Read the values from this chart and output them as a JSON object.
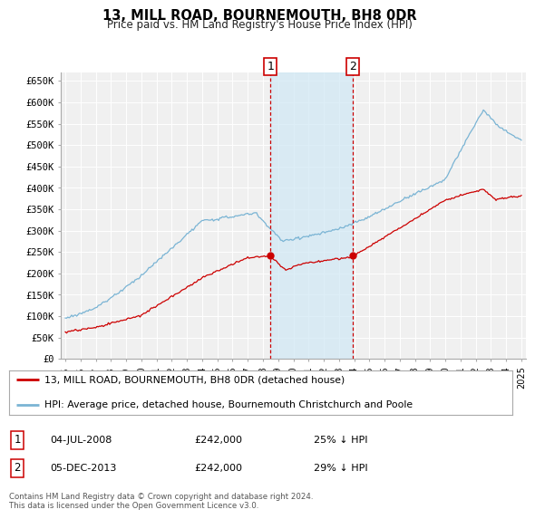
{
  "title": "13, MILL ROAD, BOURNEMOUTH, BH8 0DR",
  "subtitle": "Price paid vs. HM Land Registry's House Price Index (HPI)",
  "ylabel_ticks": [
    "£0",
    "£50K",
    "£100K",
    "£150K",
    "£200K",
    "£250K",
    "£300K",
    "£350K",
    "£400K",
    "£450K",
    "£500K",
    "£550K",
    "£600K",
    "£650K"
  ],
  "ytick_values": [
    0,
    50000,
    100000,
    150000,
    200000,
    250000,
    300000,
    350000,
    400000,
    450000,
    500000,
    550000,
    600000,
    650000
  ],
  "ylim": [
    0,
    670000
  ],
  "hpi_color": "#7ab4d4",
  "price_color": "#cc0000",
  "transaction1": {
    "date": "04-JUL-2008",
    "price": 242000,
    "label": "1",
    "pct": "25% ↓ HPI"
  },
  "transaction2": {
    "date": "05-DEC-2013",
    "price": 242000,
    "label": "2",
    "pct": "29% ↓ HPI"
  },
  "legend_property": "13, MILL ROAD, BOURNEMOUTH, BH8 0DR (detached house)",
  "legend_hpi": "HPI: Average price, detached house, Bournemouth Christchurch and Poole",
  "footer": "Contains HM Land Registry data © Crown copyright and database right 2024.\nThis data is licensed under the Open Government Licence v3.0.",
  "background_color": "#ffffff",
  "plot_bg_color": "#f0f0f0",
  "grid_color": "#ffffff",
  "shade_color": "#d0e8f5"
}
